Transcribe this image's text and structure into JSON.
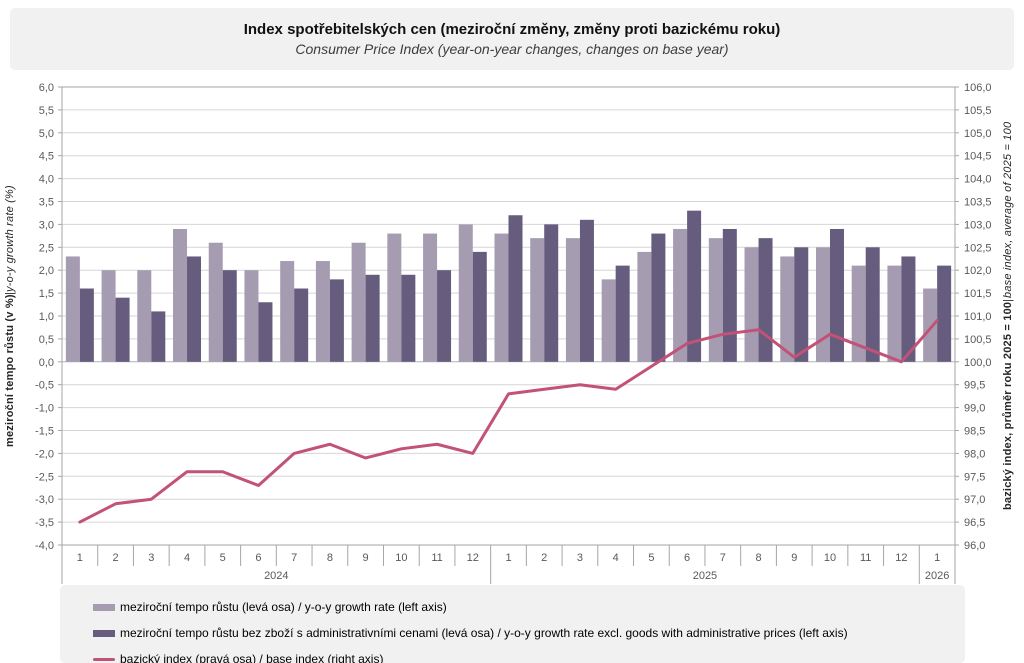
{
  "title": "Index spotřebitelských cen (meziroční změny, změny proti bazickému roku)",
  "subtitle": "Consumer Price Index (year-on-year changes, changes on base year)",
  "colors": {
    "bar_yoy": "#a59cb1",
    "bar_yoy_excl": "#665c7d",
    "base_index_line": "#c25277",
    "gridline": "#d6d6d6",
    "zero_line": "#b3b3b3",
    "axis": "#a6a6a6",
    "tick_text": "#595959",
    "panel_bg": "#f1f1f1"
  },
  "chart_data": {
    "type": "bar+line",
    "x_groups": [
      {
        "year": "2024",
        "months": [
          "1",
          "2",
          "3",
          "4",
          "5",
          "6",
          "7",
          "8",
          "9",
          "10",
          "11",
          "12"
        ]
      },
      {
        "year": "2025",
        "months": [
          "1",
          "2",
          "3",
          "4",
          "5",
          "6",
          "7",
          "8",
          "9",
          "10",
          "11",
          "12"
        ]
      },
      {
        "year": "2026",
        "months": [
          "1"
        ]
      }
    ],
    "left_axis": {
      "label_bold": "meziroční tempo růstu (v %)",
      "label_sep": " | ",
      "label_italic": "y-o-y growth rate (%)",
      "min": -4.0,
      "max": 6.0,
      "step": 0.5,
      "ticks": [
        "6,0",
        "5,5",
        "5,0",
        "4,5",
        "4,0",
        "3,5",
        "3,0",
        "2,5",
        "2,0",
        "1,5",
        "1,0",
        "0,5",
        "0,0",
        "-0,5",
        "-1,0",
        "-1,5",
        "-2,0",
        "-2,5",
        "-3,0",
        "-3,5",
        "-4,0"
      ]
    },
    "right_axis": {
      "label_bold": "bazický index, průměr roku 2025 = 100",
      "label_sep": " | ",
      "label_italic": "base index, average of 2025 = 100",
      "min": 96.0,
      "max": 106.0,
      "step": 0.5,
      "ticks": [
        "106,0",
        "105,5",
        "105,0",
        "104,5",
        "104,0",
        "103,5",
        "103,0",
        "102,5",
        "102,0",
        "101,5",
        "101,0",
        "100,5",
        "100,0",
        "99,5",
        "99,0",
        "98,5",
        "98,0",
        "97,5",
        "97,0",
        "96,5",
        "96,0"
      ]
    },
    "series": [
      {
        "name": "meziroční tempo růstu (levá osa) / y-o-y growth rate (left axis)",
        "type": "bar",
        "axis": "left",
        "color": "#a59cb1",
        "values": [
          2.3,
          2.0,
          2.0,
          2.9,
          2.6,
          2.0,
          2.2,
          2.2,
          2.6,
          2.8,
          2.8,
          3.0,
          2.8,
          2.7,
          2.7,
          1.8,
          2.4,
          2.9,
          2.7,
          2.5,
          2.3,
          2.5,
          2.1,
          2.1,
          1.6
        ]
      },
      {
        "name": "meziroční tempo růstu bez zboží s administrativními cenami (levá osa) / y-o-y growth rate excl. goods with administrative prices (left axis)",
        "type": "bar",
        "axis": "left",
        "color": "#665c7d",
        "values": [
          1.6,
          1.4,
          1.1,
          2.3,
          2.0,
          1.3,
          1.6,
          1.8,
          1.9,
          1.9,
          2.0,
          2.4,
          3.2,
          3.0,
          3.1,
          2.1,
          2.8,
          3.3,
          2.9,
          2.7,
          2.5,
          2.9,
          2.5,
          2.3,
          2.1
        ]
      },
      {
        "name": "bazický index (pravá osa) / base index (right axis)",
        "type": "line",
        "axis": "right",
        "color": "#c25277",
        "values": [
          96.5,
          96.9,
          97.0,
          97.6,
          97.6,
          97.3,
          98.0,
          98.2,
          97.9,
          98.1,
          98.2,
          98.0,
          99.3,
          99.4,
          99.5,
          99.4,
          99.9,
          100.4,
          100.6,
          100.7,
          100.1,
          100.6,
          100.3,
          100.0,
          100.9
        ]
      }
    ],
    "grid": true,
    "legend_position": "bottom"
  }
}
